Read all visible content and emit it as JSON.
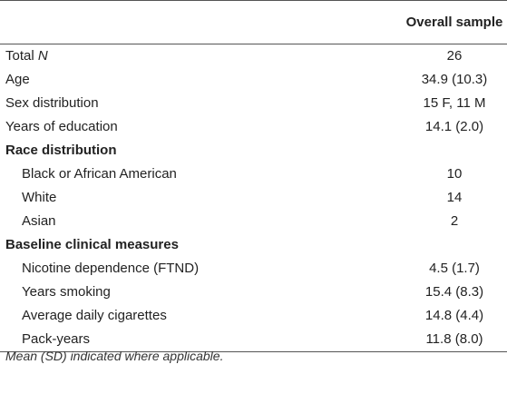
{
  "table": {
    "header": {
      "column_label": "Overall sample"
    },
    "rows": [
      {
        "label": "Total ",
        "label_italic": "N",
        "value": "26",
        "type": "row"
      },
      {
        "label": "Age",
        "value": "34.9 (10.3)",
        "type": "row"
      },
      {
        "label": "Sex distribution",
        "value": "15 F, 11 M",
        "type": "row"
      },
      {
        "label": "Years of education",
        "value": "14.1 (2.0)",
        "type": "row"
      },
      {
        "label": "Race distribution",
        "value": "",
        "type": "section"
      },
      {
        "label": "Black or African American",
        "value": "10",
        "type": "indent"
      },
      {
        "label": "White",
        "value": "14",
        "type": "indent"
      },
      {
        "label": "Asian",
        "value": "2",
        "type": "indent"
      },
      {
        "label": "Baseline clinical measures",
        "value": "",
        "type": "section"
      },
      {
        "label": "Nicotine dependence (FTND)",
        "value": "4.5 (1.7)",
        "type": "indent"
      },
      {
        "label": "Years smoking",
        "value": "15.4 (8.3)",
        "type": "indent"
      },
      {
        "label": "Average daily cigarettes",
        "value": "14.8 (4.4)",
        "type": "indent"
      },
      {
        "label": "Pack-years",
        "value": "11.8 (8.0)",
        "type": "indent"
      }
    ],
    "footnote": "Mean (SD) indicated where applicable."
  }
}
